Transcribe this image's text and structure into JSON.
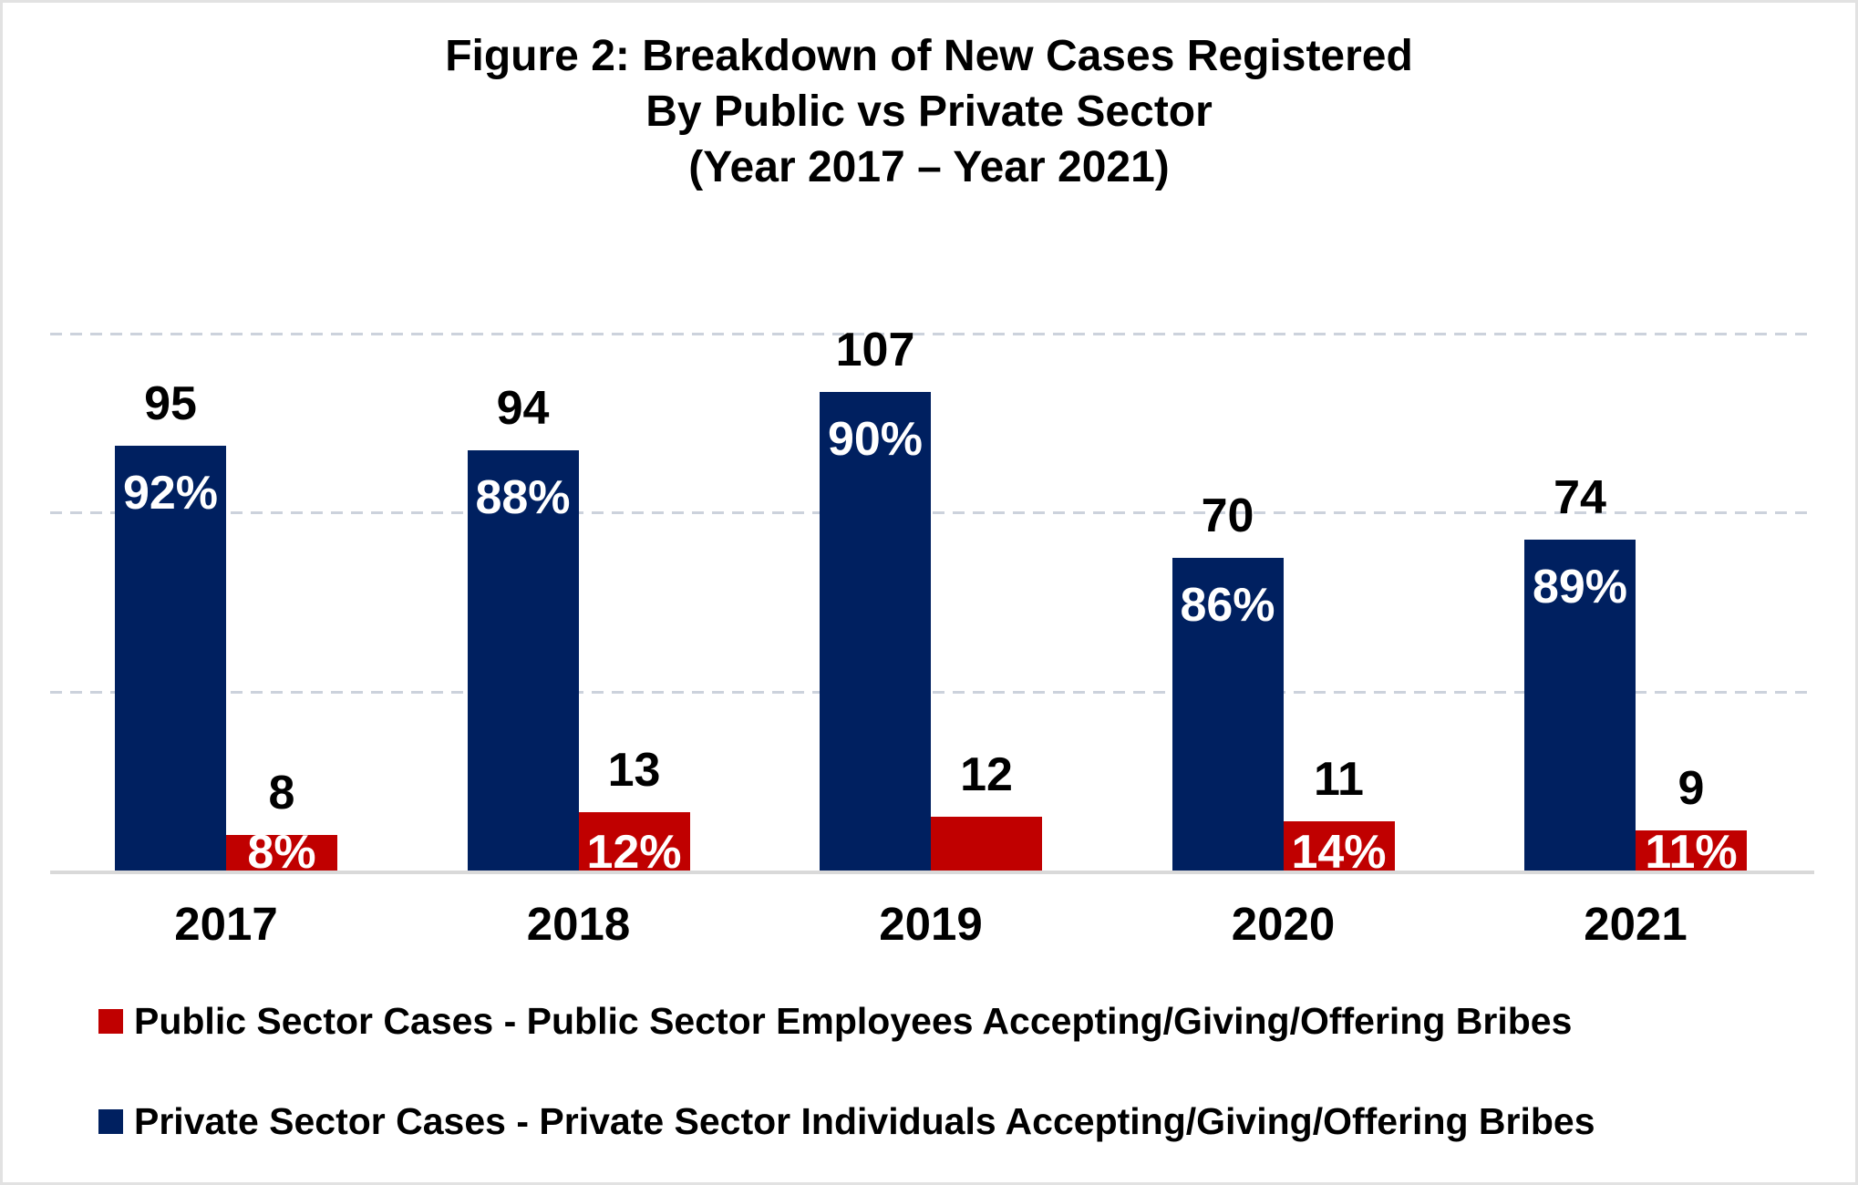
{
  "title": {
    "line1": "Figure 2: Breakdown of New Cases Registered",
    "line2": "By Public vs Private Sector",
    "line3": "(Year 2017 – Year 2021)"
  },
  "colors": {
    "private": "#002060",
    "public": "#C00000",
    "gridline": "#ccd2dc",
    "axis": "#d9d9d9",
    "background": "#ffffff",
    "border": "#e2e2e2",
    "count_label": "#000000",
    "percent_label": "#ffffff"
  },
  "chart_data": {
    "type": "bar",
    "title": "Figure 2: Breakdown of New Cases Registered By Public vs Private Sector (Year 2017 – Year 2021)",
    "categories": [
      "2017",
      "2018",
      "2019",
      "2020",
      "2021"
    ],
    "series": [
      {
        "name": "Private Sector Cases - Private Sector Individuals Accepting/Giving/Offering Bribes",
        "color_key": "private",
        "values": [
          95,
          94,
          107,
          70,
          74
        ],
        "percent_labels": [
          "92%",
          "88%",
          "90%",
          "86%",
          "89%"
        ]
      },
      {
        "name": "Public Sector Cases - Public Sector Employees Accepting/Giving/Offering Bribes",
        "color_key": "public",
        "values": [
          8,
          13,
          12,
          11,
          9
        ],
        "percent_labels": [
          "8%",
          "12%",
          null,
          "14%",
          "11%"
        ]
      }
    ],
    "xlabel": "",
    "ylabel": "",
    "ylim": [
      0,
      130
    ],
    "gridline_values": [
      40,
      80,
      120
    ],
    "grid": "horizontal-dashed",
    "y_axis_tick_labels_shown": false,
    "legend_position": "bottom-left"
  },
  "legend": {
    "items": [
      {
        "label": "Public Sector Cases - Public Sector Employees Accepting/Giving/Offering Bribes",
        "color_key": "public"
      },
      {
        "label": "Private Sector Cases - Private Sector Individuals Accepting/Giving/Offering Bribes",
        "color_key": "private"
      }
    ]
  }
}
